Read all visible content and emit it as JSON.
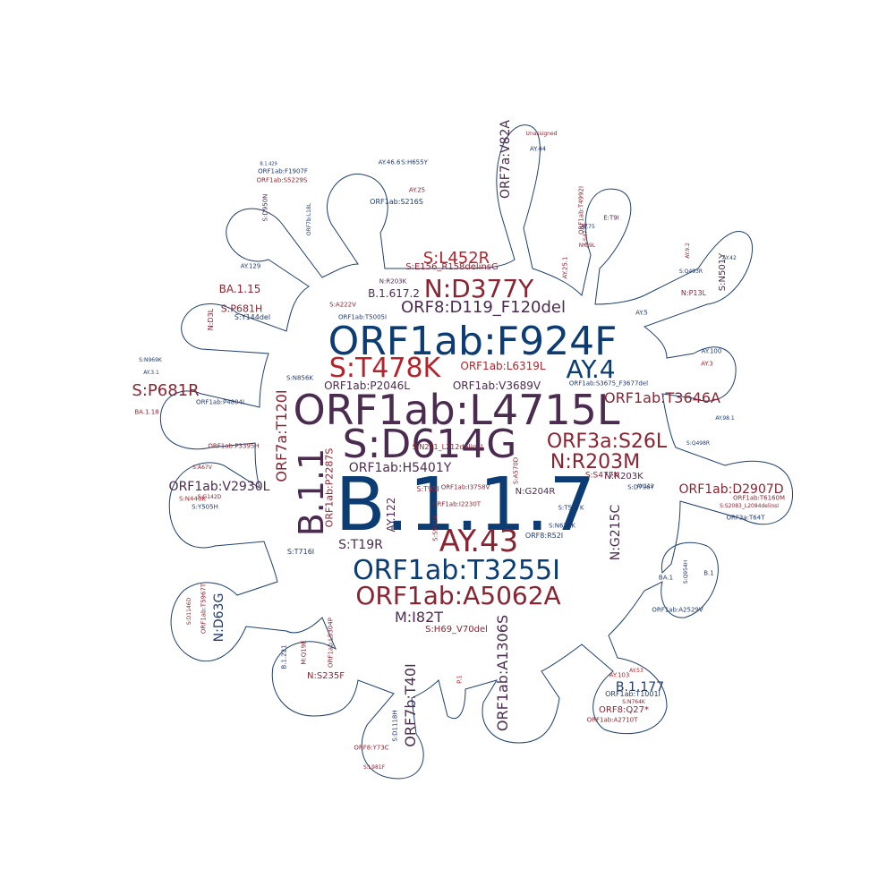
{
  "palette": {
    "blue": "#0b3c73",
    "red": "#8a2432",
    "crimson": "#b5242c",
    "plum": "#4b2c50",
    "navy": "#1f3a6e",
    "outline": "#1d3f6e"
  },
  "words": [
    {
      "text": "B.1.1.7",
      "color": "blue"
    },
    {
      "text": "ORF1ab:L4715L",
      "color": "plum"
    },
    {
      "text": "ORF1ab:F924F",
      "color": "blue"
    },
    {
      "text": "S:D614G",
      "color": "plum"
    },
    {
      "text": "B.1.1",
      "color": "plum"
    },
    {
      "text": "S:T478K",
      "color": "crimson"
    },
    {
      "text": "N:D377Y",
      "color": "red"
    },
    {
      "text": "AY.43",
      "color": "red"
    },
    {
      "text": "ORF1ab:T3255I",
      "color": "blue"
    },
    {
      "text": "ORF1ab:A5062A",
      "color": "red"
    },
    {
      "text": "ORF3a:S26L",
      "color": "red"
    },
    {
      "text": "N:R203M",
      "color": "red"
    },
    {
      "text": "AY.4",
      "color": "blue"
    },
    {
      "text": "S:L452R",
      "color": "crimson"
    },
    {
      "text": "ORF8:D119_F120del",
      "color": "plum"
    },
    {
      "text": "S:P681R",
      "color": "red"
    },
    {
      "text": "ORF1ab:T3646A",
      "color": "red"
    },
    {
      "text": "ORF1ab:D2907D",
      "color": "red"
    },
    {
      "text": "ORF7a:T120I",
      "color": "red"
    },
    {
      "text": "ORF7a:V82A",
      "color": "plum"
    },
    {
      "text": "ORF1ab:V2930L",
      "color": "plum"
    },
    {
      "text": "ORF1ab:H5401Y",
      "color": "plum"
    },
    {
      "text": "ORF1ab:P2046L",
      "color": "plum"
    },
    {
      "text": "ORF1ab:V3689V",
      "color": "plum"
    },
    {
      "text": "ORF1ab:L6319L",
      "color": "crimson"
    },
    {
      "text": "M:I82T",
      "color": "plum"
    },
    {
      "text": "N:G215C",
      "color": "plum"
    },
    {
      "text": "S:T19R",
      "color": "plum"
    },
    {
      "text": "AY.122",
      "color": "plum"
    },
    {
      "text": "ORF7b:T40I",
      "color": "plum"
    },
    {
      "text": "ORF1ab:A1306S",
      "color": "plum"
    },
    {
      "text": "N:D63G",
      "color": "navy"
    },
    {
      "text": "B.1.177",
      "color": "navy"
    },
    {
      "text": "B.1.617.2",
      "color": "plum"
    },
    {
      "text": "BA.1.15",
      "color": "red"
    },
    {
      "text": "S:P681H",
      "color": "red"
    },
    {
      "text": "ORF1ab:P2287S",
      "color": "red"
    },
    {
      "text": "S:E156_R158delinsG",
      "color": "red"
    },
    {
      "text": "N:G204R",
      "color": "plum"
    },
    {
      "text": "N:R203K",
      "color": "plum"
    },
    {
      "text": "S:H69_V70del",
      "color": "red"
    },
    {
      "text": "S:Y144del",
      "color": "navy"
    },
    {
      "text": "N:D3L",
      "color": "red"
    },
    {
      "text": "S:T95I",
      "color": "crimson"
    },
    {
      "text": "S:N501Y",
      "color": "plum"
    },
    {
      "text": "ORF1ab:I2230T",
      "color": "red"
    },
    {
      "text": "ORF1ab:I3758V",
      "color": "red"
    },
    {
      "text": "S:A570D",
      "color": "red"
    },
    {
      "text": "S:S982A",
      "color": "red"
    },
    {
      "text": "ORF8:R52I",
      "color": "navy"
    },
    {
      "text": "ORF8:Q27*",
      "color": "red"
    },
    {
      "text": "ORF1ab:T1001I",
      "color": "navy"
    },
    {
      "text": "N:S235F",
      "color": "red"
    },
    {
      "text": "ORF3a:T64T",
      "color": "navy"
    },
    {
      "text": "S:T716I",
      "color": "navy"
    },
    {
      "text": "S:N679K",
      "color": "navy"
    },
    {
      "text": "BA.1",
      "color": "navy"
    },
    {
      "text": "AY.129",
      "color": "navy"
    },
    {
      "text": "ORF1ab:T5005I",
      "color": "navy"
    },
    {
      "text": "ORF1ab:S3675_F3677del",
      "color": "navy"
    },
    {
      "text": "ORF1ab:P4804L",
      "color": "navy"
    },
    {
      "text": "ORF1ab:P3395H",
      "color": "red"
    },
    {
      "text": "ORF1ab:S216S",
      "color": "navy"
    },
    {
      "text": "ORF1ab:F1907F",
      "color": "navy"
    },
    {
      "text": "ORF1ab:S5229S",
      "color": "red"
    },
    {
      "text": "S:D950N",
      "color": "plum"
    },
    {
      "text": "ORF7b:L18L",
      "color": "navy"
    },
    {
      "text": "S:H655Y",
      "color": "navy"
    },
    {
      "text": "AY.46.6",
      "color": "navy"
    },
    {
      "text": "AY.25",
      "color": "red"
    },
    {
      "text": "E:T9I",
      "color": "plum"
    },
    {
      "text": "ORF1ab:T4992I",
      "color": "red"
    },
    {
      "text": "N:Q9L",
      "color": "red"
    },
    {
      "text": "S:S477N",
      "color": "red"
    },
    {
      "text": "N:P13L",
      "color": "red"
    },
    {
      "text": "AY.42",
      "color": "navy"
    },
    {
      "text": "AY.5",
      "color": "navy"
    },
    {
      "text": "AY.3",
      "color": "crimson"
    },
    {
      "text": "AY.100",
      "color": "navy"
    },
    {
      "text": "AY.98.1",
      "color": "navy"
    },
    {
      "text": "S:Q498R",
      "color": "navy"
    },
    {
      "text": "S:N440K",
      "color": "crimson"
    },
    {
      "text": "S:G142D",
      "color": "red"
    },
    {
      "text": "S:Y505H",
      "color": "navy"
    },
    {
      "text": "S:A67V",
      "color": "red"
    },
    {
      "text": "AY.112",
      "color": "navy"
    },
    {
      "text": "S:T547K",
      "color": "navy"
    },
    {
      "text": "S:D796Y",
      "color": "navy"
    },
    {
      "text": "AY.103",
      "color": "crimson"
    },
    {
      "text": "AY.53",
      "color": "crimson"
    },
    {
      "text": "S:N764K",
      "color": "red"
    },
    {
      "text": "ORF1ab:A2710T",
      "color": "red"
    },
    {
      "text": "ORF1ab:A2529V",
      "color": "navy"
    },
    {
      "text": "S:Q954H",
      "color": "navy"
    },
    {
      "text": "ORF1ab:T6160M",
      "color": "red"
    },
    {
      "text": "S:S2083_L2084delinsI",
      "color": "red"
    },
    {
      "text": "S:D1146D",
      "color": "red"
    },
    {
      "text": "ORF1ab:T5967T",
      "color": "red"
    },
    {
      "text": "ORF1ab:L5304P",
      "color": "red"
    },
    {
      "text": "S:D1118H",
      "color": "navy"
    },
    {
      "text": "ORF8:Y73C",
      "color": "red"
    },
    {
      "text": "S:L981F",
      "color": "red"
    },
    {
      "text": "BA.1.18",
      "color": "red"
    },
    {
      "text": "S:N969K",
      "color": "navy"
    },
    {
      "text": "AY.3.1",
      "color": "navy"
    },
    {
      "text": "B.1.221",
      "color": "navy"
    },
    {
      "text": "M:Q19E",
      "color": "red"
    },
    {
      "text": "S:S477N",
      "color": "red"
    },
    {
      "text": "N:R203K",
      "color": "plum"
    },
    {
      "text": "S:N856K",
      "color": "navy"
    },
    {
      "text": "S:A222V",
      "color": "red"
    },
    {
      "text": "B.1",
      "color": "navy"
    },
    {
      "text": "P.1",
      "color": "crimson"
    },
    {
      "text": "AY.44",
      "color": "navy"
    },
    {
      "text": "B.1.429",
      "color": "navy"
    },
    {
      "text": "Unassigned",
      "color": "red"
    },
    {
      "text": "AY.25.1",
      "color": "red"
    },
    {
      "text": "AY.9.2",
      "color": "red"
    },
    {
      "text": "S:Q493R",
      "color": "navy"
    },
    {
      "text": "AY.75",
      "color": "navy"
    },
    {
      "text": "S:N211_L212delinsI",
      "color": "red"
    }
  ]
}
